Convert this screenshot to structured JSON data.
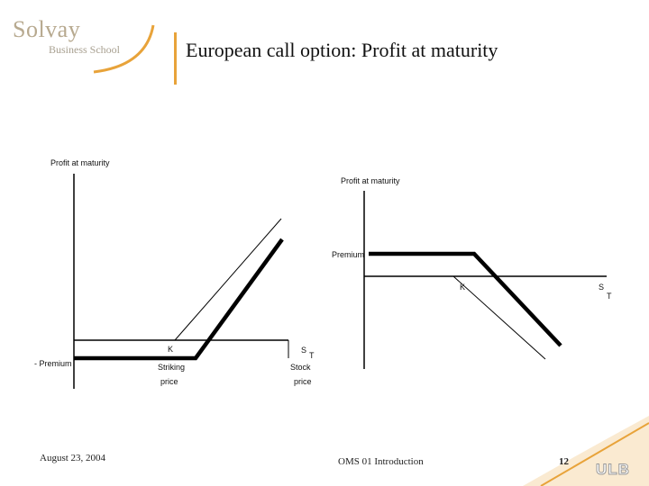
{
  "header": {
    "logo_name": "Solvay",
    "logo_sub": "Business School",
    "title": "European call option: Profit at maturity"
  },
  "left_chart": {
    "y_axis_label": "Profit at maturity",
    "premium_label": "- Premium",
    "strike_label": "K",
    "strike_caption_1": "Striking",
    "strike_caption_2": "price",
    "x_axis_label_main": "S",
    "x_axis_label_sub": "T",
    "stock_caption_1": "Stock",
    "stock_caption_2": "price"
  },
  "right_chart": {
    "y_axis_label": "Profit at maturity",
    "premium_label": "Premium",
    "strike_label": "K",
    "x_axis_label_main": "S",
    "x_axis_label_sub": "T"
  },
  "footer": {
    "date": "August 23, 2004",
    "course": "OMS 01 Introduction",
    "page": "12",
    "institution": "ULB"
  },
  "colors": {
    "accent": "#e8a33a",
    "logo": "#b7a98f"
  }
}
